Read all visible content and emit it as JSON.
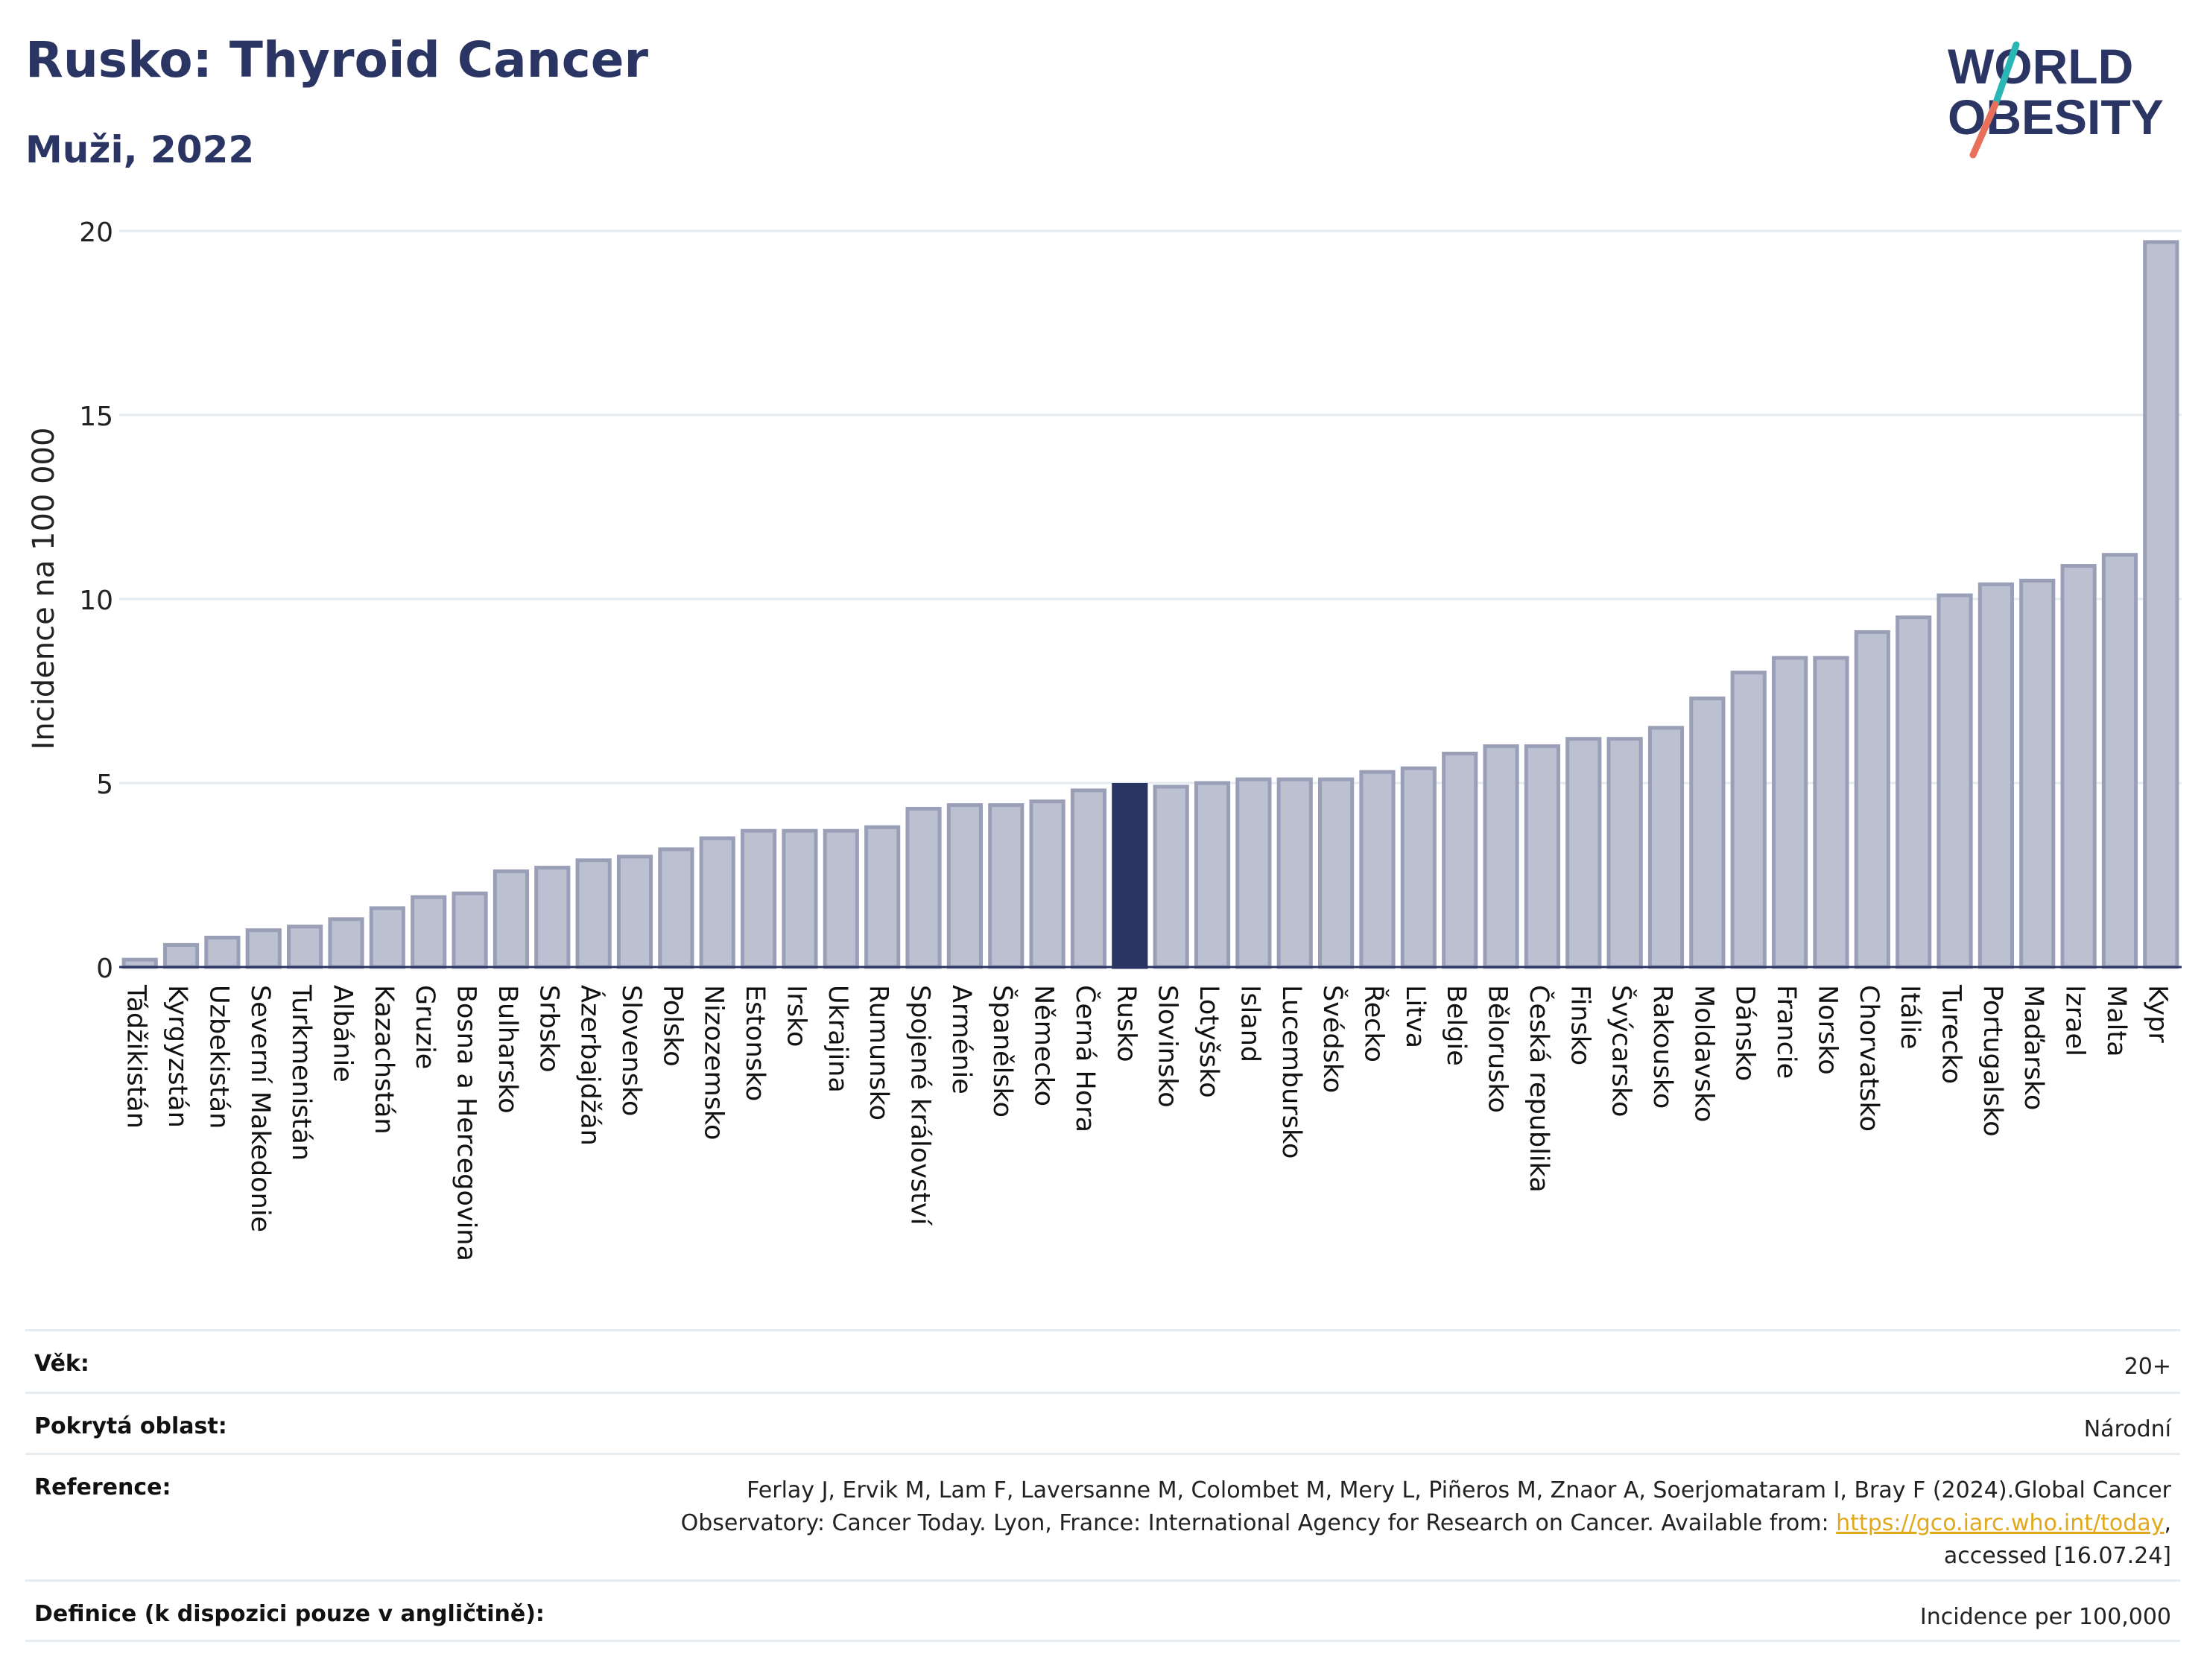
{
  "header": {
    "title": "Rusko: Thyroid Cancer",
    "subtitle": "Muži, 2022"
  },
  "logo": {
    "line1": "WORLD",
    "line2": "OBESITY",
    "slash_colors": [
      "#2bb6b6",
      "#e8705a"
    ],
    "text_color": "#2b3563"
  },
  "colors": {
    "bar": "#bcc1d1",
    "bar_stroke": "#9a9fb8",
    "highlight": "#2b3563",
    "grid": "#e6ebf0",
    "axis": "#2b3563"
  },
  "chart_data": {
    "type": "bar",
    "title": "",
    "xlabel": "",
    "ylabel": "Incidence na 100 000",
    "ylim": [
      0,
      20
    ],
    "yticks": [
      0,
      5,
      10,
      15,
      20
    ],
    "grid": true,
    "highlight": "Rusko",
    "categories": [
      "Tádžikistán",
      "Kyrgyzstán",
      "Uzbekistán",
      "Severní Makedonie",
      "Turkmenistán",
      "Albánie",
      "Kazachstán",
      "Gruzie",
      "Bosna a Hercegovina",
      "Bulharsko",
      "Srbsko",
      "Ázerbajdžán",
      "Slovensko",
      "Polsko",
      "Nizozemsko",
      "Estonsko",
      "Irsko",
      "Ukrajina",
      "Rumunsko",
      "Spojené království",
      "Arménie",
      "Španělsko",
      "Německo",
      "Černá Hora",
      "Rusko",
      "Slovinsko",
      "Lotyšsko",
      "Island",
      "Lucembursko",
      "Švédsko",
      "Řecko",
      "Litva",
      "Belgie",
      "Bělorusko",
      "Česká republika",
      "Finsko",
      "Švýcarsko",
      "Rakousko",
      "Moldavsko",
      "Dánsko",
      "Francie",
      "Norsko",
      "Chorvatsko",
      "Itálie",
      "Turecko",
      "Portugalsko",
      "Maďarsko",
      "Izrael",
      "Malta",
      "Kypr"
    ],
    "values": [
      0.2,
      0.6,
      0.8,
      1.0,
      1.1,
      1.3,
      1.6,
      1.9,
      2.0,
      2.6,
      2.7,
      2.9,
      3.0,
      3.2,
      3.5,
      3.7,
      3.7,
      3.7,
      3.8,
      4.3,
      4.4,
      4.4,
      4.5,
      4.8,
      4.95,
      4.9,
      5.0,
      5.1,
      5.1,
      5.1,
      5.3,
      5.4,
      5.8,
      6.0,
      6.0,
      6.2,
      6.2,
      6.5,
      7.3,
      8.0,
      8.4,
      8.4,
      9.1,
      9.5,
      10.1,
      10.4,
      10.5,
      10.9,
      11.2,
      19.7
    ]
  },
  "info": {
    "age_label": "Věk:",
    "age_value": "20+",
    "area_label": "Pokrytá oblast:",
    "area_value": "Národní",
    "ref_label": "Reference:",
    "ref_text_1": "Ferlay J, Ervik M, Lam F, Laversanne M, Colombet M, Mery L, Piñeros M, Znaor A, Soerjomataram I, Bray F (2024).Global Cancer",
    "ref_text_2": "Observatory: Cancer Today. Lyon, France: International Agency for Research on Cancer. Available from: ",
    "ref_link": "https://gco.iarc.who.int/today",
    "ref_text_3": ",",
    "ref_text_4": "accessed [16.07.24]",
    "def_label": "Definice (k dispozici pouze v angličtině):",
    "def_value": "Incidence per 100,000"
  }
}
